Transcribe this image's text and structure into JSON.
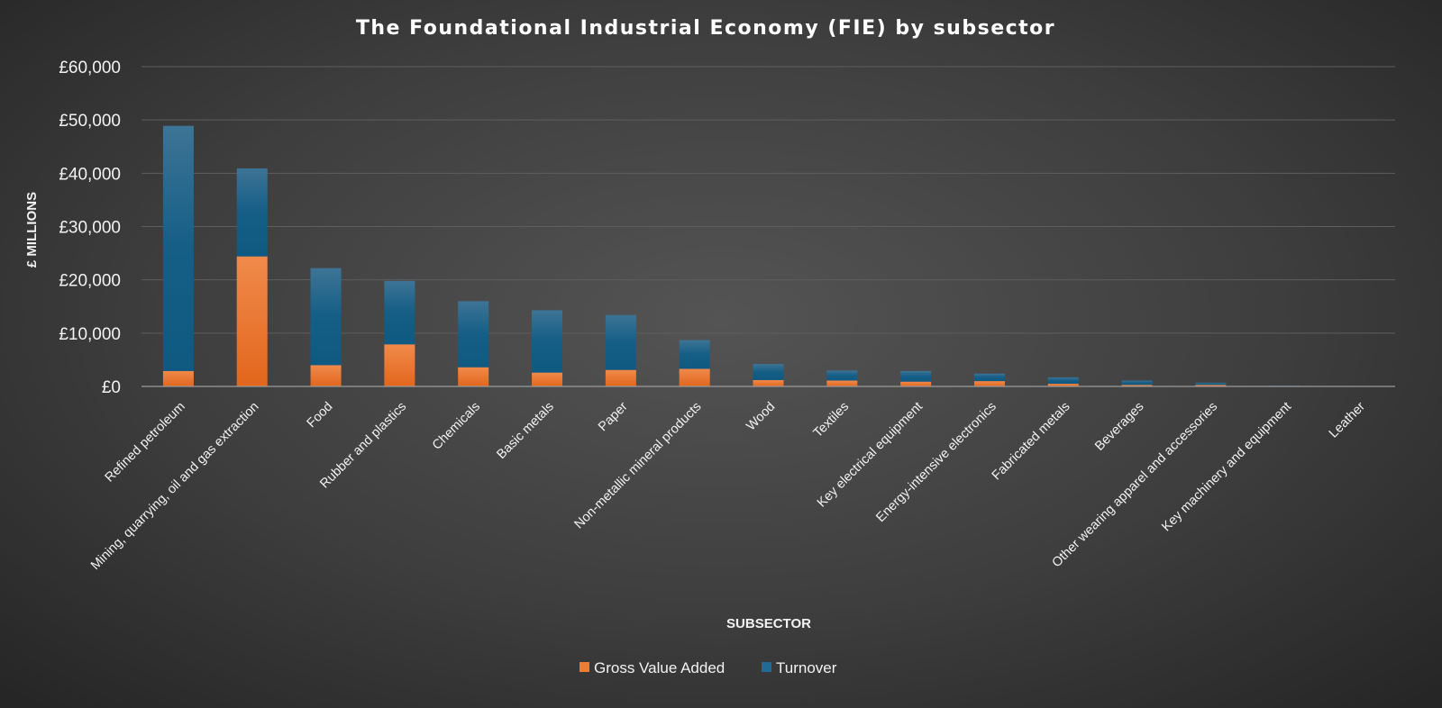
{
  "chart_data": {
    "type": "bar",
    "stacked": true,
    "title": "The Foundational Industrial Economy (FIE) by subsector",
    "xlabel": "SUBSECTOR",
    "ylabel": "£ MILLIONS",
    "ylim": [
      0,
      60000
    ],
    "y_ticks": [
      {
        "value": 0,
        "label": "£0"
      },
      {
        "value": 10000,
        "label": "£10,000"
      },
      {
        "value": 20000,
        "label": "£20,000"
      },
      {
        "value": 30000,
        "label": "£30,000"
      },
      {
        "value": 40000,
        "label": "£40,000"
      },
      {
        "value": 50000,
        "label": "£50,000"
      },
      {
        "value": 60000,
        "label": "£60,000"
      }
    ],
    "grid": true,
    "legend_position": "bottom",
    "categories": [
      "Refined petroleum",
      "Mining, quarrying, oil and gas extraction",
      "Food",
      "Rubber and plastics",
      "Chemicals",
      "Basic metals",
      "Paper",
      "Non-metallic mineral products",
      "Wood",
      "Textiles",
      "Key electrical equipment",
      "Energy-intensive electronics",
      "Fabricated metals",
      "Beverages",
      "Other wearing apparel and accessories",
      "Key machinery and equipment",
      "Leather"
    ],
    "series": [
      {
        "name": "Gross Value Added",
        "color": "#ED7D31",
        "values": [
          2900,
          24400,
          4000,
          7900,
          3600,
          2600,
          3100,
          3300,
          1200,
          1100,
          900,
          1000,
          500,
          300,
          300,
          50,
          30
        ]
      },
      {
        "name": "Turnover",
        "color": "#1F6B95",
        "values": [
          46000,
          16500,
          18200,
          11900,
          12400,
          11700,
          10300,
          5400,
          3000,
          1900,
          2000,
          1400,
          1200,
          800,
          400,
          100,
          50
        ]
      }
    ]
  }
}
